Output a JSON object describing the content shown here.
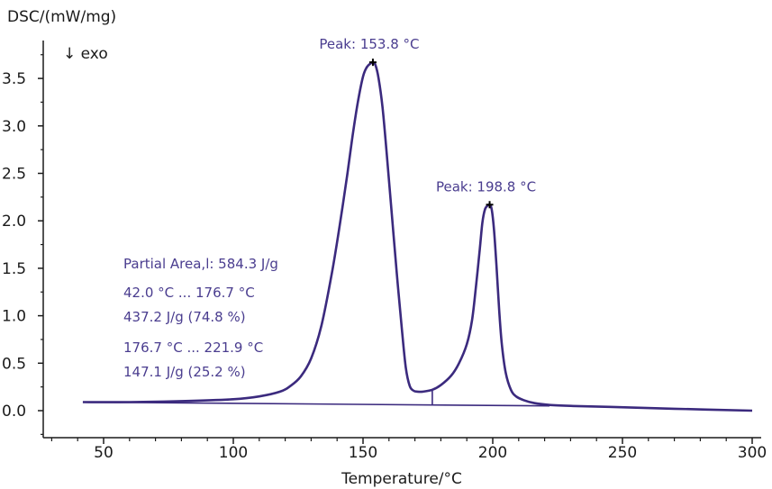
{
  "chart_data": {
    "type": "line",
    "ylabel": "DSC/(mW/mg)",
    "xlabel": "Temperature/°C",
    "direction_label": "↓ exo",
    "xlim": [
      30,
      302
    ],
    "ylim": [
      -0.25,
      3.85
    ],
    "x_ticks": [
      50,
      100,
      150,
      200,
      250,
      300
    ],
    "y_ticks": [
      0.0,
      0.5,
      1.0,
      1.5,
      2.0,
      2.5,
      3.0,
      3.5
    ],
    "x_tick_labels": [
      "50",
      "100",
      "150",
      "200",
      "250",
      "300"
    ],
    "y_tick_labels": [
      "0.0",
      "0.5",
      "1.0",
      "1.5",
      "2.0",
      "2.5",
      "3.0",
      "3.5"
    ],
    "grid": false,
    "line_color": "#3b2a7e",
    "annotation_color": "#4a3d8f",
    "series": [
      {
        "x": [
          42,
          60,
          80,
          100,
          110,
          118,
          122,
          126,
          130,
          134,
          138,
          141,
          144,
          146,
          148,
          150,
          151.5,
          153,
          153.8,
          154.8,
          156,
          157.5,
          159,
          161,
          163,
          165,
          166.5,
          168,
          169.5,
          171,
          173,
          176.7,
          180,
          184,
          187,
          190,
          192,
          193.5,
          195,
          196,
          197,
          198,
          198.8,
          199.6,
          200.5,
          201.5,
          202.5,
          203.5,
          205,
          207,
          209,
          212,
          216,
          222,
          230,
          245,
          270,
          300
        ],
        "y": [
          0.09,
          0.09,
          0.1,
          0.12,
          0.15,
          0.2,
          0.26,
          0.36,
          0.55,
          0.9,
          1.45,
          1.95,
          2.5,
          2.9,
          3.25,
          3.52,
          3.62,
          3.66,
          3.67,
          3.64,
          3.5,
          3.2,
          2.75,
          2.1,
          1.45,
          0.85,
          0.45,
          0.26,
          0.21,
          0.2,
          0.2,
          0.22,
          0.27,
          0.37,
          0.5,
          0.7,
          0.95,
          1.3,
          1.7,
          1.98,
          2.12,
          2.16,
          2.17,
          2.12,
          1.9,
          1.5,
          1.05,
          0.7,
          0.4,
          0.22,
          0.15,
          0.11,
          0.08,
          0.06,
          0.05,
          0.04,
          0.02,
          0.0
        ]
      }
    ],
    "baseline": {
      "x": [
        42,
        221.9
      ],
      "y": [
        0.09,
        0.05
      ]
    },
    "partition_x": 176.7,
    "peaks": [
      {
        "x": 153.8,
        "y": 3.67,
        "label": "Peak: 153.8 °C"
      },
      {
        "x": 198.8,
        "y": 2.17,
        "label": "Peak: 198.8 °C"
      }
    ],
    "annotations": [
      "Partial Area,l: 584.3 J/g",
      "42.0 °C ... 176.7 °C",
      "437.2 J/g (74.8 %)",
      "176.7 °C ... 221.9 °C",
      "147.1 J/g (25.2 %)"
    ]
  }
}
